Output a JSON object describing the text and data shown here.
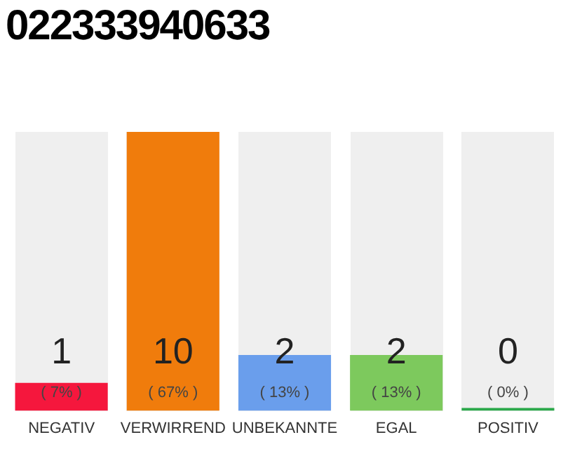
{
  "chart_data": {
    "type": "bar",
    "title": "022333940633",
    "categories": [
      "NEGATIV",
      "VERWIRREND",
      "UNBEKANNTE",
      "EGAL",
      "POSITIV"
    ],
    "values": [
      1,
      10,
      2,
      2,
      0
    ],
    "colors": [
      "#f5173d",
      "#f07c0c",
      "#6a9eec",
      "#7dc95d",
      "#2aa84a"
    ],
    "value_labels": [
      "1",
      "10",
      "2",
      "2",
      "0"
    ],
    "annotations": [
      "( 7% )",
      "( 67% )",
      "( 13% )",
      "( 13% )",
      "( 0% )"
    ],
    "grid": false,
    "legend": false
  }
}
